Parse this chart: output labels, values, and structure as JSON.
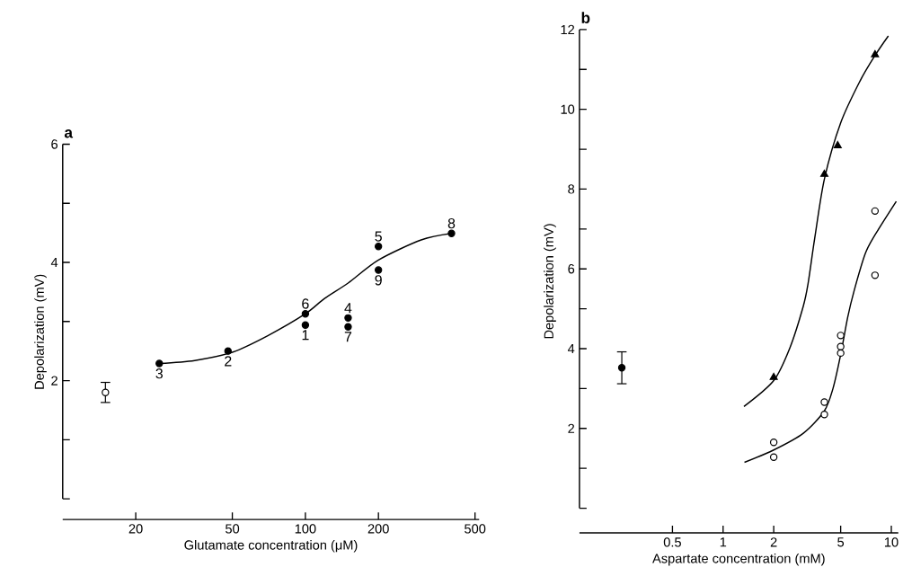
{
  "chart_data": [
    {
      "type": "scatter",
      "title": "a",
      "xlabel": "Glutamate concentration (μM)",
      "ylabel": "Depolarization (mV)",
      "log": "x",
      "xlim": [
        10,
        520
      ],
      "ylim": [
        -0.35,
        6
      ],
      "xticks": [
        20,
        50,
        100,
        200,
        500
      ],
      "yticks": [
        {
          "value": 0,
          "label": null
        },
        {
          "value": 1,
          "label": null
        },
        2,
        {
          "value": 3,
          "label": null
        },
        4,
        {
          "value": 5,
          "label": null
        },
        6
      ],
      "grid": false,
      "series": [
        {
          "type": "line",
          "color": "#000000",
          "marker": "none",
          "x": [
            25,
            35,
            50,
            70,
            100,
            120,
            150,
            200,
            300,
            400
          ],
          "values": [
            2.29,
            2.34,
            2.48,
            2.76,
            3.13,
            3.39,
            3.65,
            4.04,
            4.38,
            4.49
          ]
        },
        {
          "color": "#000000",
          "marker": "circle",
          "x": [
            25,
            48,
            100,
            100,
            150,
            150,
            200,
            200,
            400
          ],
          "values": [
            2.29,
            2.5,
            3.13,
            2.94,
            3.06,
            2.91,
            4.27,
            3.87,
            4.49
          ]
        },
        {
          "color": "#ffffff",
          "marker": "circle",
          "x": [
            15
          ],
          "values": [
            1.8
          ],
          "errors": [
            0.17
          ]
        }
      ],
      "annotations": [
        {
          "text": "3",
          "x": 25,
          "y": 2.29
        },
        {
          "text": "2",
          "x": 48,
          "y": 2.5
        },
        {
          "text": "6",
          "x": 100,
          "y": 3.13
        },
        {
          "text": "1",
          "x": 100,
          "y": 2.94
        },
        {
          "text": "4",
          "x": 150,
          "y": 3.06
        },
        {
          "text": "7",
          "x": 150,
          "y": 2.91
        },
        {
          "text": "5",
          "x": 200,
          "y": 4.27
        },
        {
          "text": "9",
          "x": 200,
          "y": 3.87
        },
        {
          "text": "8",
          "x": 400,
          "y": 4.49
        }
      ]
    },
    {
      "type": "scatter",
      "title": "b",
      "xlabel": "Aspartate concentration (mM)",
      "ylabel": "Depolarization (mV)",
      "log": "x",
      "xlim": [
        0.14,
        11
      ],
      "ylim": [
        -0.62,
        12
      ],
      "xticks": [
        0.5,
        1,
        2,
        5,
        10
      ],
      "yticks": [
        {
          "value": 0,
          "label": null
        },
        {
          "value": 1,
          "label": null
        },
        2,
        {
          "value": 3,
          "label": null
        },
        4,
        {
          "value": 5,
          "label": null
        },
        6,
        {
          "value": 7,
          "label": null
        },
        8,
        {
          "value": 9,
          "label": null
        },
        10,
        {
          "value": 11,
          "label": null
        },
        12
      ],
      "grid": false,
      "series": [
        {
          "type": "line",
          "color": "#000000",
          "marker": "none",
          "x": [
            1.33,
            2,
            2.5,
            3,
            3.2,
            3.5,
            4,
            5,
            6.5,
            8,
            9.6
          ],
          "values": [
            2.55,
            3.2,
            4.03,
            5.07,
            5.63,
            6.75,
            8.25,
            9.66,
            10.7,
            11.35,
            11.84
          ]
        },
        {
          "type": "line",
          "color": "#000000",
          "marker": "none",
          "x": [
            1.34,
            2,
            3,
            4,
            4.5,
            5,
            5.5,
            6,
            7,
            8,
            10.7
          ],
          "values": [
            1.15,
            1.46,
            1.88,
            2.44,
            3.0,
            3.85,
            4.78,
            5.44,
            6.38,
            6.85,
            7.69
          ]
        },
        {
          "color": "#000000",
          "marker": "triangle",
          "x": [
            2,
            4,
            4.8,
            8
          ],
          "values": [
            3.28,
            8.37,
            9.09,
            11.37
          ]
        },
        {
          "color": "#ffffff",
          "marker": "circle",
          "x": [
            2,
            2,
            4,
            4,
            5,
            5,
            5,
            8,
            8
          ],
          "values": [
            1.65,
            1.28,
            2.66,
            2.35,
            4.33,
            4.05,
            3.89,
            7.45,
            5.84
          ]
        },
        {
          "color": "#000000",
          "marker": "circle",
          "x": [
            0.25
          ],
          "values": [
            3.52
          ],
          "errors": [
            0.4
          ]
        }
      ]
    }
  ]
}
